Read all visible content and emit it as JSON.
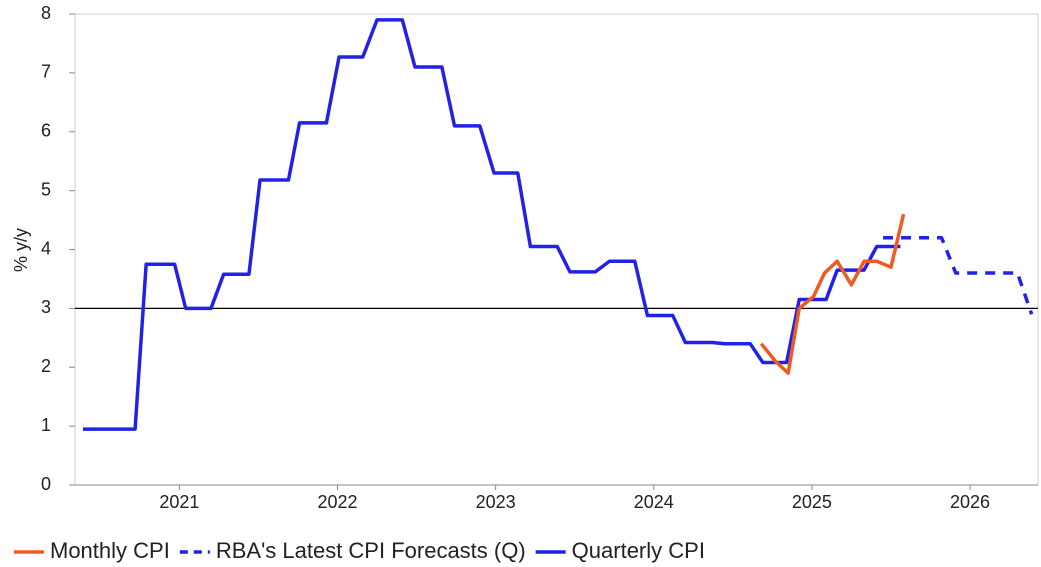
{
  "chart_data": {
    "type": "line",
    "y_label": "% y/y",
    "xlim": [
      2020.84,
      2026.93
    ],
    "ylim": [
      0,
      8
    ],
    "xticks": [
      {
        "value": 2021.5,
        "label": "2021"
      },
      {
        "value": 2022.5,
        "label": "2022"
      },
      {
        "value": 2023.5,
        "label": "2023"
      },
      {
        "value": 2024.5,
        "label": "2024"
      },
      {
        "value": 2025.5,
        "label": "2025"
      },
      {
        "value": 2026.5,
        "label": "2026"
      }
    ],
    "yticks": [
      0,
      1,
      2,
      3,
      4,
      5,
      6,
      7,
      8
    ],
    "reference_line": 3,
    "legend": "bottom",
    "series": [
      {
        "name": "Monthly CPI",
        "color": "#f05a22",
        "style": "solid",
        "x": [
          2025.18,
          2025.27,
          2025.35,
          2025.42,
          2025.51,
          2025.58,
          2025.66,
          2025.75,
          2025.83,
          2025.91,
          2026.0,
          2026.08
        ],
        "values": [
          2.4,
          2.1,
          1.9,
          3.0,
          3.2,
          3.6,
          3.8,
          3.4,
          3.8,
          3.8,
          3.7,
          4.6
        ]
      },
      {
        "name": "RBA's Latest CPI Forecasts (Q)",
        "color": "#2222e6",
        "style": "dashed",
        "x": [
          2025.95,
          2026.32,
          2026.41,
          2026.8,
          2026.89
        ],
        "values": [
          4.2,
          4.2,
          3.6,
          3.6,
          2.9
        ]
      },
      {
        "name": "Quarterly CPI",
        "color": "#2222e6",
        "style": "solid",
        "x": [
          2020.89,
          2021.22,
          2021.29,
          2021.47,
          2021.54,
          2021.7,
          2021.78,
          2021.94,
          2022.01,
          2022.19,
          2022.26,
          2022.43,
          2022.51,
          2022.66,
          2022.75,
          2022.91,
          2022.99,
          2023.16,
          2023.24,
          2023.4,
          2023.49,
          2023.64,
          2023.72,
          2023.89,
          2023.97,
          2024.13,
          2024.22,
          2024.38,
          2024.46,
          2024.62,
          2024.7,
          2024.87,
          2024.95,
          2025.11,
          2025.19,
          2025.34,
          2025.42,
          2025.59,
          2025.66,
          2025.83,
          2025.91,
          2026.06
        ],
        "values": [
          0.95,
          0.95,
          3.75,
          3.75,
          3.0,
          3.0,
          3.58,
          3.58,
          5.18,
          5.18,
          6.15,
          6.15,
          7.27,
          7.27,
          7.9,
          7.9,
          7.1,
          7.1,
          6.1,
          6.1,
          5.3,
          5.3,
          4.05,
          4.05,
          3.62,
          3.62,
          3.8,
          3.8,
          2.88,
          2.88,
          2.42,
          2.42,
          2.4,
          2.4,
          2.08,
          2.08,
          3.15,
          3.15,
          3.65,
          3.65,
          4.05,
          4.05
        ]
      }
    ]
  }
}
